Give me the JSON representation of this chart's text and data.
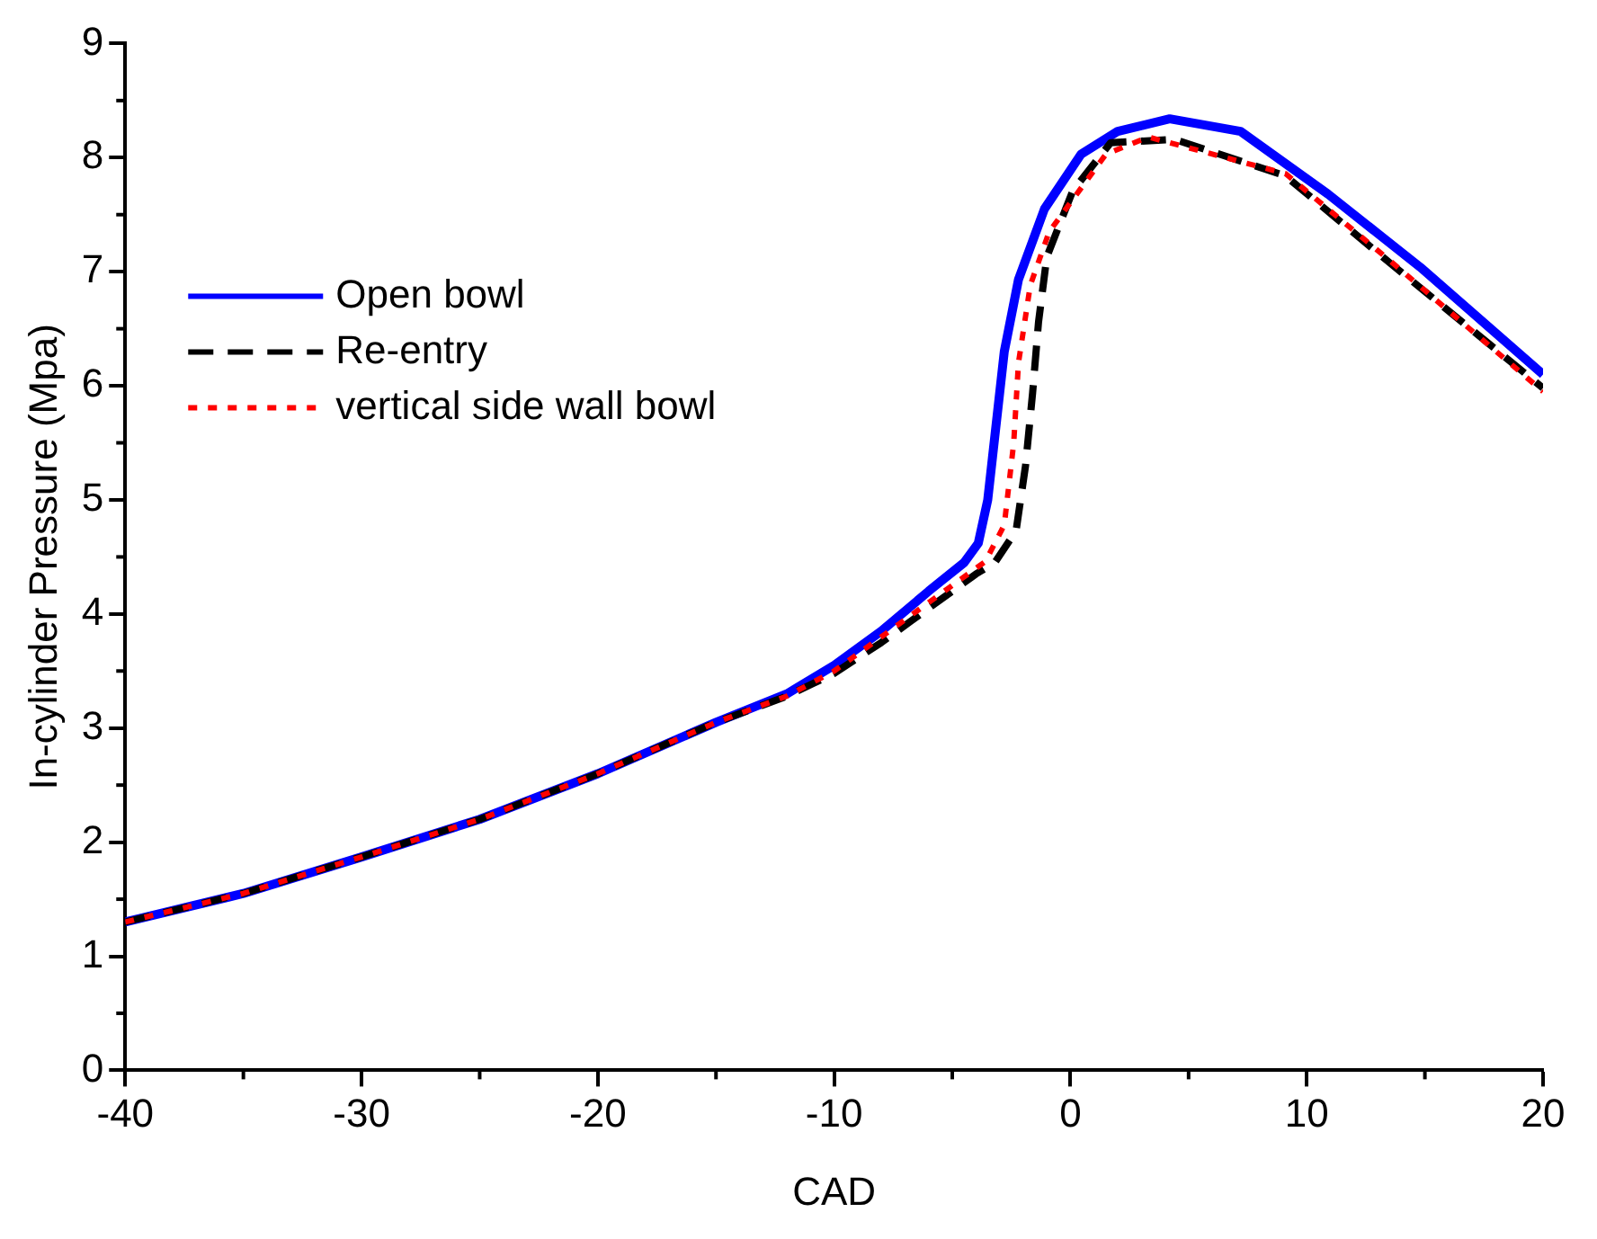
{
  "chart_data": {
    "type": "line",
    "xlabel": "CAD",
    "ylabel": "In-cylinder Pressure (Mpa)",
    "xlim": [
      -40,
      20
    ],
    "xticks": [
      -40,
      -30,
      -20,
      -10,
      0,
      10,
      20
    ],
    "ylim": [
      0,
      9
    ],
    "yticks": [
      0,
      1,
      2,
      3,
      4,
      5,
      6,
      7,
      8,
      9
    ],
    "grid": false,
    "legend": "top left",
    "marker": "none",
    "series": [
      {
        "name": "Open bowl",
        "color": "#0000ff",
        "line_style": "solid",
        "x": [
          -40,
          -35,
          -30,
          -25,
          -20,
          -15,
          -12,
          -10,
          -8,
          -6,
          -4.5,
          -3.9,
          -3.5,
          -2.8,
          -2.2,
          -1.1,
          0.45,
          2,
          4.2,
          7.2,
          10.9,
          14.8,
          20
        ],
        "values": [
          1.3,
          1.55,
          1.87,
          2.2,
          2.6,
          3.05,
          3.3,
          3.55,
          3.85,
          4.2,
          4.45,
          4.62,
          5.0,
          6.3,
          6.93,
          7.55,
          8.03,
          8.23,
          8.34,
          8.23,
          7.68,
          7.04,
          6.1
        ]
      },
      {
        "name": "Re-entry",
        "color": "#000000",
        "line_style": "dashed",
        "x": [
          -40,
          -35,
          -30,
          -25,
          -20,
          -15,
          -12,
          -10,
          -8,
          -6,
          -4,
          -3.2,
          -2.3,
          -1.9,
          -1.6,
          -1.35,
          -1.0,
          0.1,
          1.7,
          4.4,
          9.1,
          13.5,
          20
        ],
        "values": [
          1.3,
          1.55,
          1.87,
          2.2,
          2.6,
          3.05,
          3.28,
          3.48,
          3.75,
          4.05,
          4.35,
          4.45,
          4.73,
          5.3,
          5.94,
          6.56,
          7.13,
          7.71,
          8.13,
          8.16,
          7.84,
          7.08,
          5.98
        ]
      },
      {
        "name": "vertical side wall bowl",
        "color": "#ff0000",
        "line_style": "dotted",
        "x": [
          -40,
          -35,
          -30,
          -25,
          -20,
          -15,
          -12,
          -10,
          -8,
          -6,
          -4,
          -3.6,
          -2.8,
          -2.4,
          -2.2,
          -1.7,
          -0.9,
          1.5,
          3.3,
          9.1,
          13.5,
          20
        ],
        "values": [
          1.3,
          1.55,
          1.87,
          2.2,
          2.6,
          3.05,
          3.28,
          3.5,
          3.8,
          4.1,
          4.4,
          4.46,
          4.78,
          5.5,
          6.2,
          6.88,
          7.35,
          8.03,
          8.18,
          7.86,
          7.1,
          5.95
        ]
      }
    ]
  }
}
